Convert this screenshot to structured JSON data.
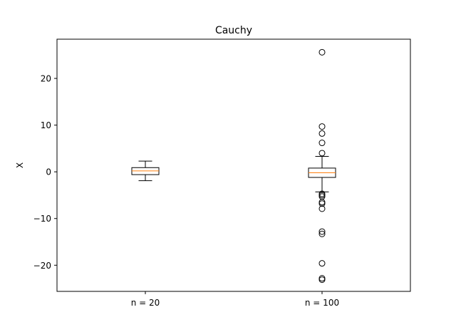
{
  "chart_data": {
    "type": "box",
    "title": "Cauchy",
    "xlabel": "",
    "ylabel": "X",
    "ylim": [
      -25.6,
      28.4
    ],
    "yticks": [
      20,
      10,
      0,
      -10,
      -20
    ],
    "ytick_labels": [
      "20",
      "10",
      "0",
      "−10",
      "−20"
    ],
    "categories": [
      "n = 20",
      "n = 100"
    ],
    "boxes": [
      {
        "label": "n = 20",
        "whisker_low": -1.9,
        "q1": -0.6,
        "median": 0.2,
        "q3": 0.9,
        "whisker_high": 2.3,
        "outliers": []
      },
      {
        "label": "n = 100",
        "whisker_low": -4.3,
        "q1": -1.2,
        "median": -0.2,
        "q3": 0.8,
        "whisker_high": 3.3,
        "outliers": [
          25.6,
          9.7,
          8.2,
          6.2,
          4.0,
          -4.7,
          -5.0,
          -5.3,
          -6.5,
          -6.8,
          -7.9,
          -12.8,
          -13.3,
          -19.6,
          -22.8,
          -23.1
        ]
      }
    ],
    "colors": {
      "median": "#ff7f0e",
      "box": "#000000"
    },
    "grid": false
  }
}
